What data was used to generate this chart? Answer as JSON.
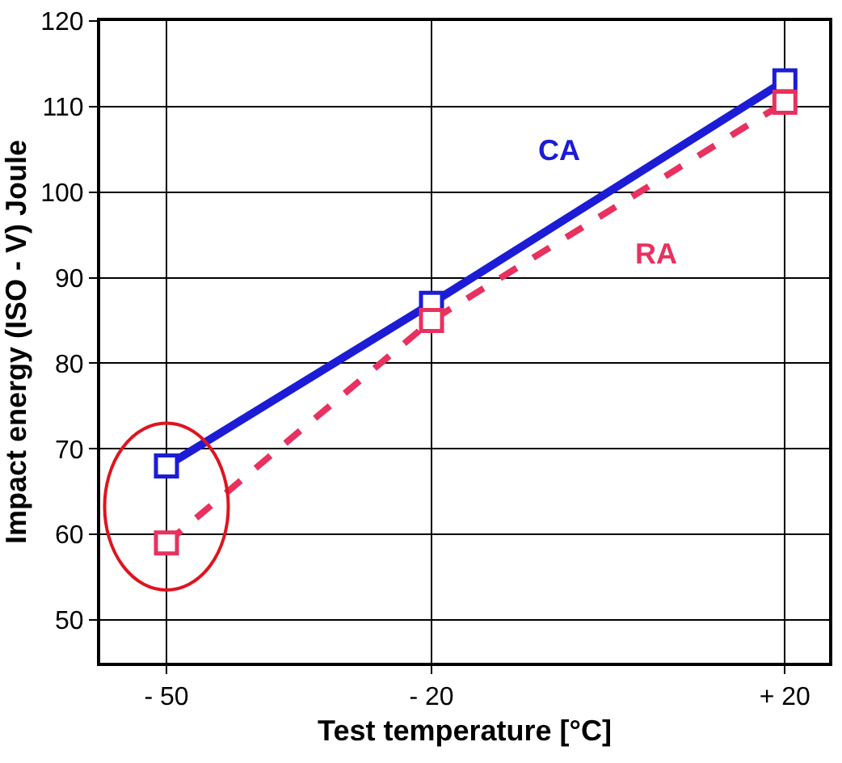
{
  "chart_data": {
    "type": "line",
    "xlabel": "Test temperature [°C]",
    "ylabel": "Impact energy (ISO - V) Joule",
    "x": [
      -50,
      -20,
      20
    ],
    "series": [
      {
        "name": "CA",
        "color": "#1c1cd6",
        "values": [
          68,
          87,
          113
        ],
        "line_style": "solid"
      },
      {
        "name": "RA",
        "color": "#e8315f",
        "values": [
          59,
          85,
          110.5
        ],
        "line_style": "dashed"
      }
    ],
    "xlim": [
      -57.5,
      25
    ],
    "xticks": [
      {
        "value": -50,
        "label": "- 50"
      },
      {
        "value": -20,
        "label": "- 20"
      },
      {
        "value": 20,
        "label": "+ 20"
      }
    ],
    "ylim": [
      45,
      120
    ],
    "yticks": [
      50,
      60,
      70,
      80,
      90,
      100,
      110,
      120
    ],
    "grid": true,
    "legend": false,
    "marker": "square"
  }
}
